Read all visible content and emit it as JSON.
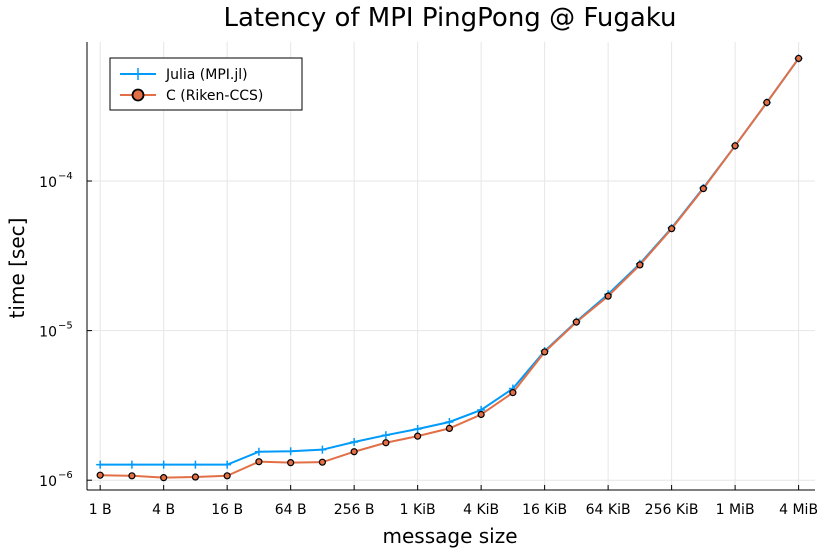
{
  "chart_data": {
    "type": "line",
    "title": "Latency of MPI PingPong @ Fugaku",
    "xlabel": "message size",
    "ylabel": "time [sec]",
    "x_scale": "log2",
    "y_scale": "log10",
    "xlim_bytes": [
      0.75,
      6000000
    ],
    "ylim": [
      8.6e-07,
      0.00085
    ],
    "x_ticks": [
      {
        "value": 1,
        "label": "1 B"
      },
      {
        "value": 4,
        "label": "4 B"
      },
      {
        "value": 16,
        "label": "16 B"
      },
      {
        "value": 64,
        "label": "64 B"
      },
      {
        "value": 256,
        "label": "256 B"
      },
      {
        "value": 1024,
        "label": "1 KiB"
      },
      {
        "value": 4096,
        "label": "4 KiB"
      },
      {
        "value": 16384,
        "label": "16 KiB"
      },
      {
        "value": 65536,
        "label": "64 KiB"
      },
      {
        "value": 262144,
        "label": "256 KiB"
      },
      {
        "value": 1048576,
        "label": "1 MiB"
      },
      {
        "value": 4194304,
        "label": "4 MiB"
      }
    ],
    "y_ticks": [
      {
        "value": 1e-06,
        "base": "10",
        "exp": "−6"
      },
      {
        "value": 1e-05,
        "base": "10",
        "exp": "−5"
      },
      {
        "value": 0.0001,
        "base": "10",
        "exp": "−4"
      }
    ],
    "grid": true,
    "legend_position": "top-left",
    "x": [
      1,
      2,
      4,
      8,
      16,
      32,
      64,
      128,
      256,
      512,
      1024,
      2048,
      4096,
      8192,
      16384,
      32768,
      65536,
      131072,
      262144,
      524288,
      1048576,
      2097152,
      4194304
    ],
    "series": [
      {
        "name": "Julia (MPI.jl)",
        "color": "#009AFA",
        "marker": "cross",
        "values": [
          1.27e-06,
          1.27e-06,
          1.27e-06,
          1.27e-06,
          1.27e-06,
          1.55e-06,
          1.56e-06,
          1.6e-06,
          1.8e-06,
          2e-06,
          2.2e-06,
          2.45e-06,
          2.95e-06,
          4.1e-06,
          7.3e-06,
          1.15e-05,
          1.75e-05,
          2.8e-05,
          4.85e-05,
          9e-05,
          0.000172,
          0.000335,
          0.00066
        ]
      },
      {
        "name": "C (Riken-CCS)",
        "color": "#E26F46",
        "marker": "circle",
        "values": [
          1.08e-06,
          1.07e-06,
          1.04e-06,
          1.05e-06,
          1.07e-06,
          1.33e-06,
          1.31e-06,
          1.32e-06,
          1.55e-06,
          1.78e-06,
          1.97e-06,
          2.22e-06,
          2.75e-06,
          3.85e-06,
          7.2e-06,
          1.14e-05,
          1.7e-05,
          2.75e-05,
          4.8e-05,
          8.9e-05,
          0.000172,
          0.000335,
          0.00066
        ]
      }
    ]
  }
}
